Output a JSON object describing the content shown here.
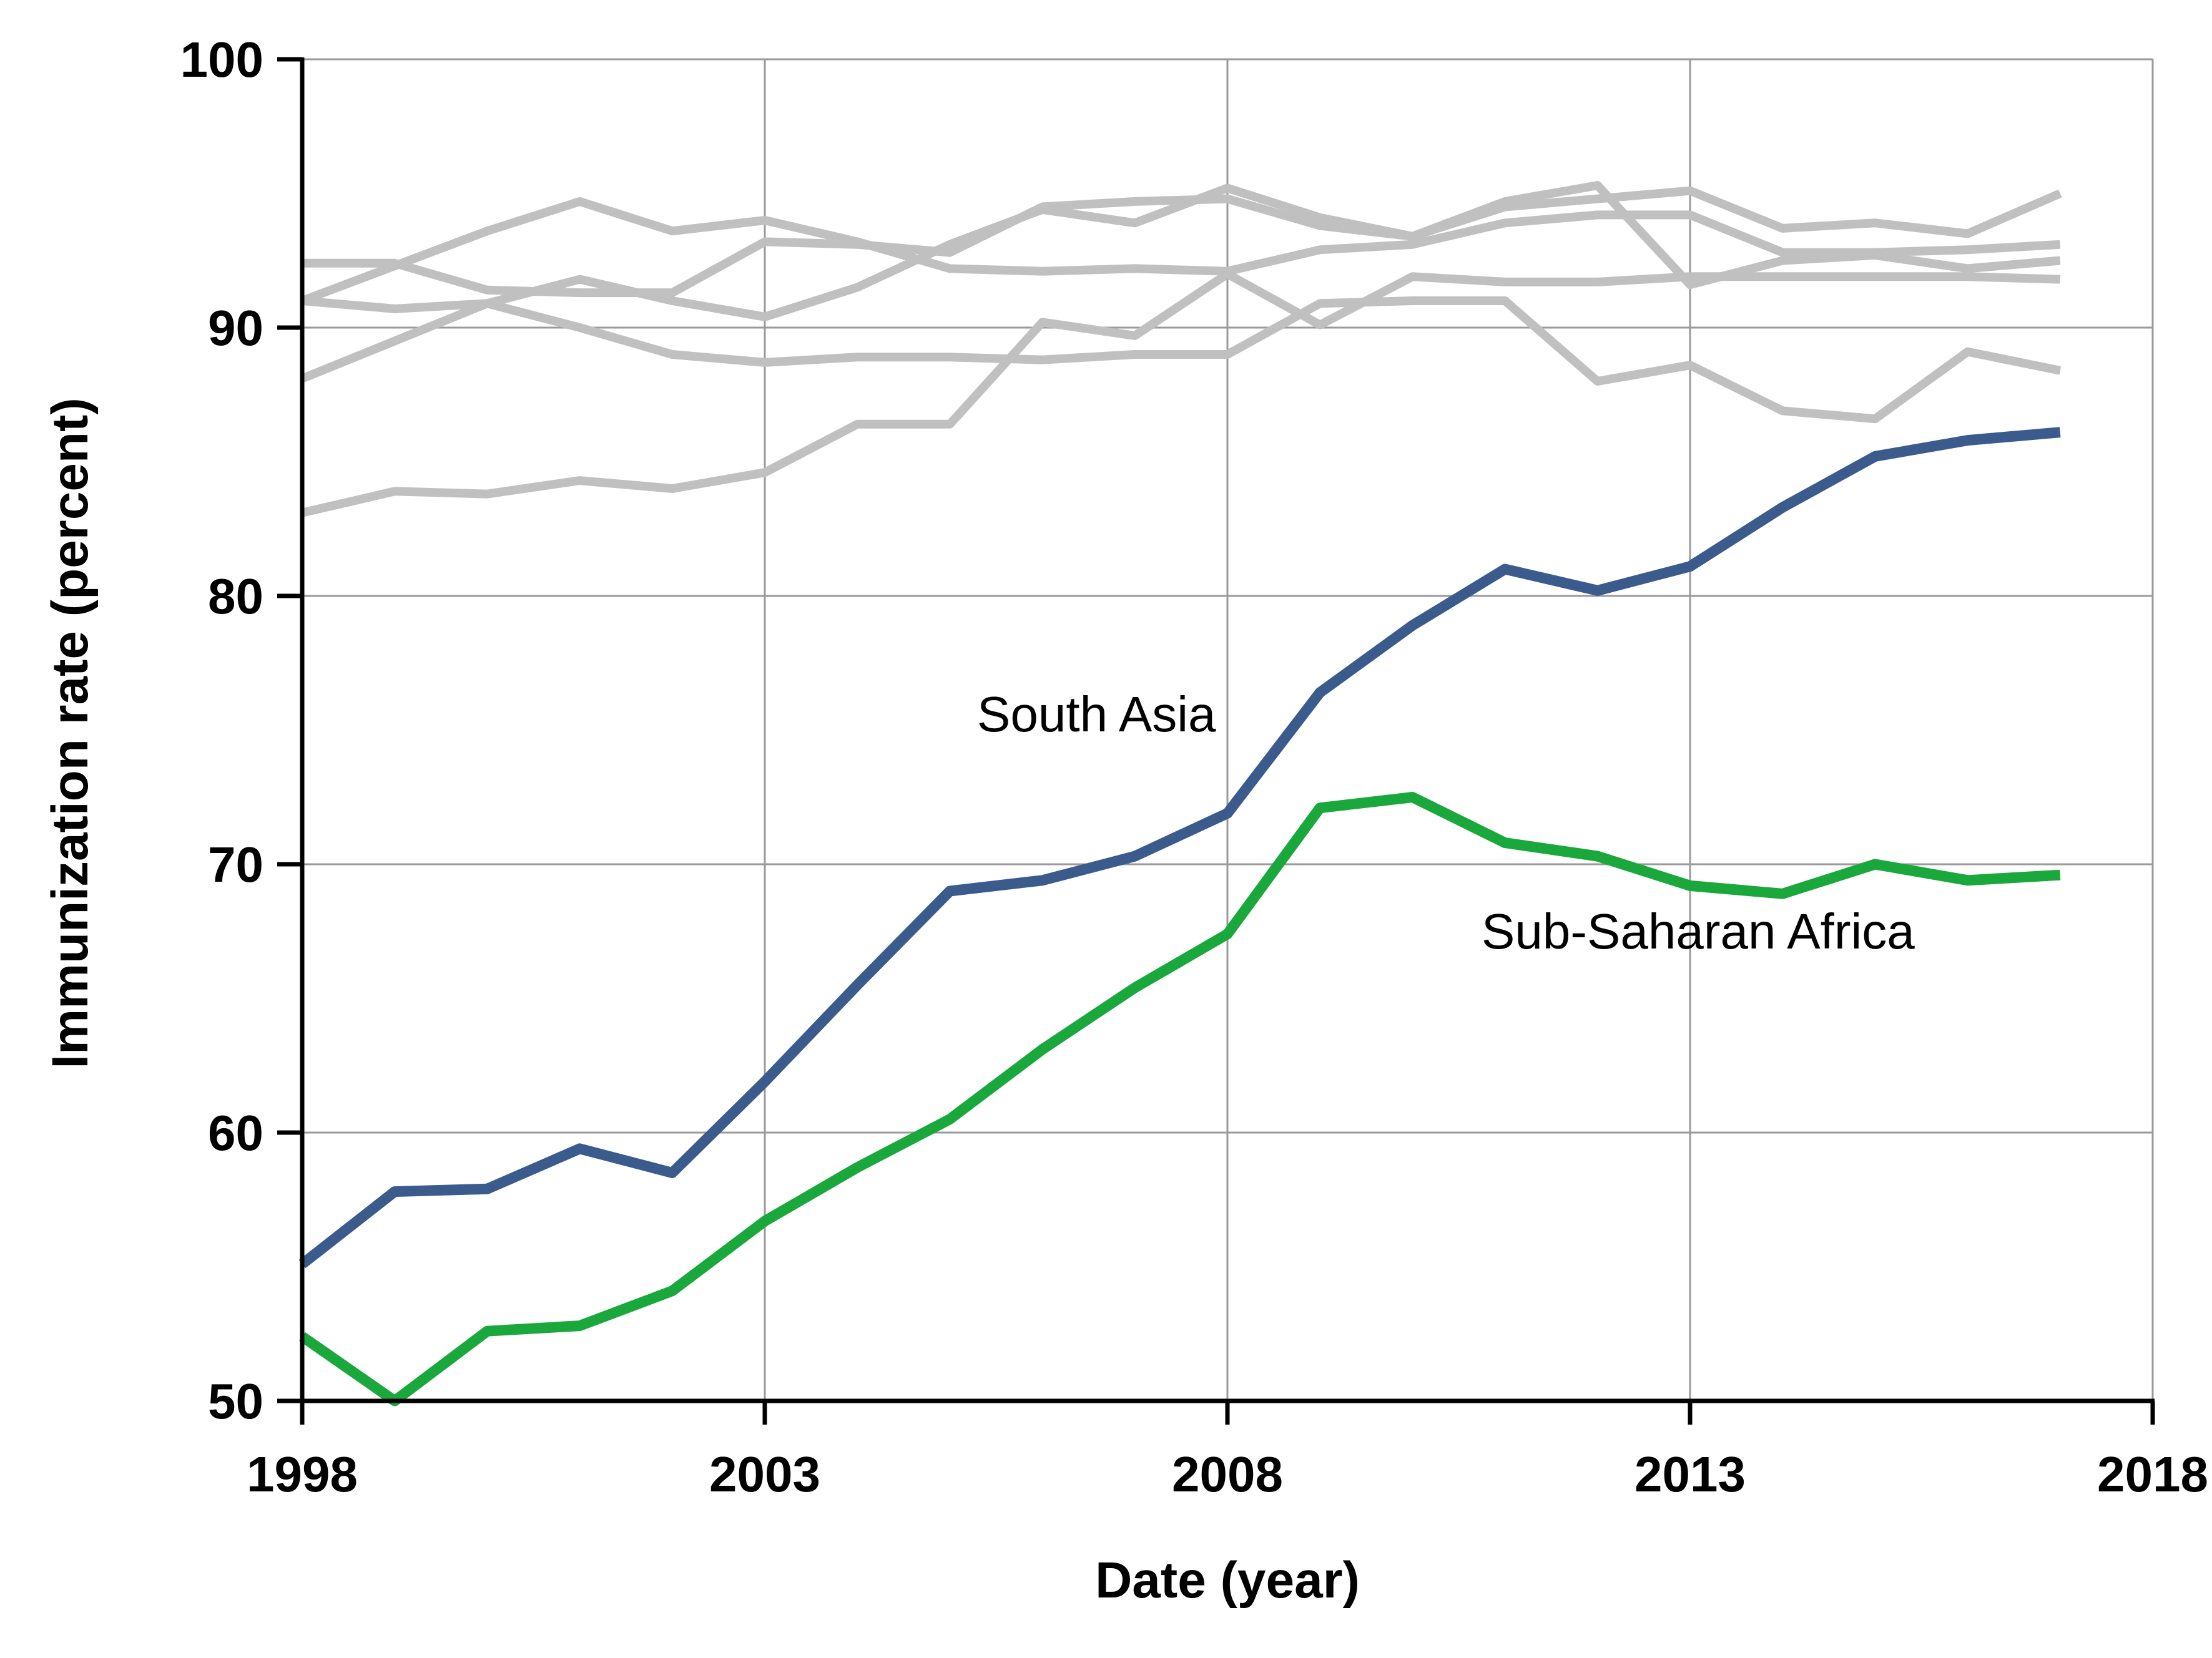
{
  "chart_data": {
    "type": "line",
    "xlabel": "Date (year)",
    "ylabel": "Immunization rate (percent)",
    "xlim": [
      1998,
      2018
    ],
    "ylim": [
      50,
      100
    ],
    "xticks": [
      "1998",
      "2003",
      "2008",
      "2013",
      "2018"
    ],
    "yticks": [
      "50",
      "60",
      "70",
      "80",
      "90",
      "100"
    ],
    "grid": true,
    "colors": {
      "context": "#c0c0c0",
      "south_asia": "#3a5b8c",
      "africa": "#1aa83c",
      "grid": "#9a9a9a",
      "axis": "#000000"
    },
    "x": [
      1998,
      1999,
      2000,
      2001,
      2002,
      2003,
      2004,
      2005,
      2006,
      2007,
      2008,
      2009,
      2010,
      2011,
      2012,
      2013,
      2014,
      2015,
      2016,
      2017
    ],
    "context_series": [
      {
        "values": [
          91.0,
          92.3,
          93.6,
          94.7,
          93.6,
          94.0,
          93.2,
          92.2,
          92.1,
          92.2,
          92.1,
          92.9,
          93.1,
          93.9,
          94.2,
          94.2,
          92.8,
          92.8,
          92.9,
          93.1
        ]
      },
      {
        "values": [
          92.4,
          92.4,
          91.4,
          91.3,
          91.3,
          93.2,
          93.1,
          92.8,
          94.5,
          94.7,
          94.8,
          93.8,
          93.4,
          94.7,
          95.3,
          91.6,
          92.5,
          92.7,
          92.2,
          92.5
        ]
      },
      {
        "values": [
          91.0,
          90.7,
          90.9,
          91.8,
          91.0,
          90.4,
          91.5,
          93.1,
          94.4,
          93.9,
          95.2,
          94.1,
          93.4,
          94.5,
          94.8,
          95.1,
          93.7,
          93.9,
          93.5,
          95.0
        ]
      },
      {
        "values": [
          88.1,
          89.5,
          90.9,
          90.0,
          89.0,
          88.7,
          88.9,
          88.9,
          88.8,
          89.0,
          89.0,
          90.9,
          91.0,
          91.0,
          88.0,
          88.6,
          86.9,
          86.6,
          89.1,
          88.4
        ]
      },
      {
        "values": [
          83.1,
          83.9,
          83.8,
          84.3,
          84.0,
          84.6,
          86.4,
          86.4,
          90.2,
          89.7,
          92.0,
          90.1,
          91.9,
          91.7,
          91.7,
          91.9,
          91.9,
          91.9,
          91.9,
          91.8
        ]
      }
    ],
    "series": [
      {
        "name": "South Asia",
        "values": [
          55.1,
          57.8,
          57.9,
          59.4,
          58.5,
          61.9,
          65.5,
          69.0,
          69.4,
          70.3,
          71.9,
          76.4,
          78.9,
          81.0,
          80.2,
          81.1,
          83.3,
          85.2,
          85.8,
          86.1
        ]
      },
      {
        "name": "Sub-Saharan Africa",
        "values": [
          52.4,
          50.0,
          52.6,
          52.8,
          54.1,
          56.7,
          58.7,
          60.5,
          63.1,
          65.4,
          67.4,
          72.1,
          72.5,
          70.8,
          70.3,
          69.2,
          68.9,
          70.0,
          69.4,
          69.6
        ]
      }
    ]
  }
}
